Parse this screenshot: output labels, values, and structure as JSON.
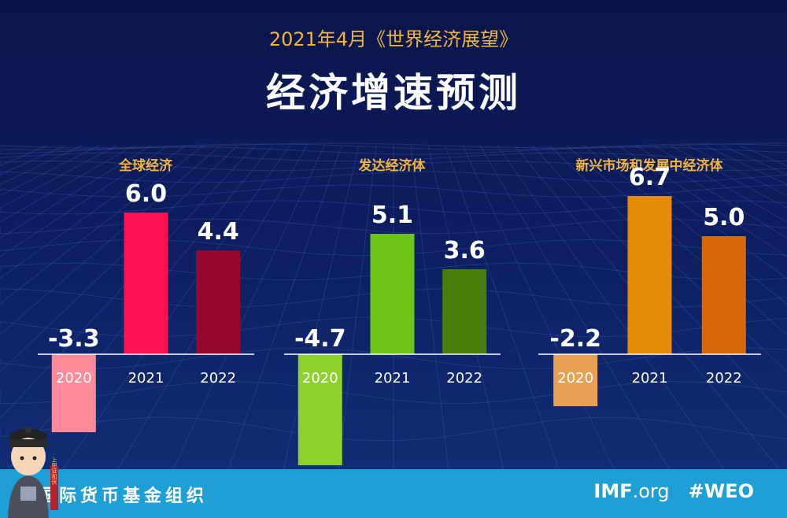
{
  "header": {
    "subtitle": "2021年4月《世界经济展望》",
    "title": "经济增速预测"
  },
  "footer": {
    "org_name": "国际货币基金组织",
    "site_main": "IMF",
    "site_suffix": ".org",
    "hashtag": "#WEO",
    "mascot_stamp_text": "上甲证和伏"
  },
  "colors": {
    "background": "#0b1850",
    "accent_text": "#f2b53a",
    "footer_band": "#1e9fd6"
  },
  "chart_data": [
    {
      "type": "bar",
      "title": "全球经济",
      "categories": [
        "2020",
        "2021",
        "2022"
      ],
      "values": [
        -3.3,
        6.0,
        4.4
      ],
      "value_labels": [
        "-3.3",
        "6.0",
        "4.4"
      ],
      "colors": [
        "#ff8b98",
        "#ff1150",
        "#95082c"
      ],
      "ylim": [
        -4.7,
        6.7
      ]
    },
    {
      "type": "bar",
      "title": "发达经济体",
      "categories": [
        "2020",
        "2021",
        "2022"
      ],
      "values": [
        -4.7,
        5.1,
        3.6
      ],
      "value_labels": [
        "-4.7",
        "5.1",
        "3.6"
      ],
      "colors": [
        "#8fd12c",
        "#6cc417",
        "#4a7c0a"
      ],
      "ylim": [
        -4.7,
        6.7
      ]
    },
    {
      "type": "bar",
      "title": "新兴市场和发展中经济体",
      "categories": [
        "2020",
        "2021",
        "2022"
      ],
      "values": [
        -2.2,
        6.7,
        5.0
      ],
      "value_labels": [
        "-2.2",
        "6.7",
        "5.0"
      ],
      "colors": [
        "#e8a055",
        "#e58a07",
        "#d4680a"
      ],
      "ylim": [
        -4.7,
        6.7
      ]
    }
  ]
}
